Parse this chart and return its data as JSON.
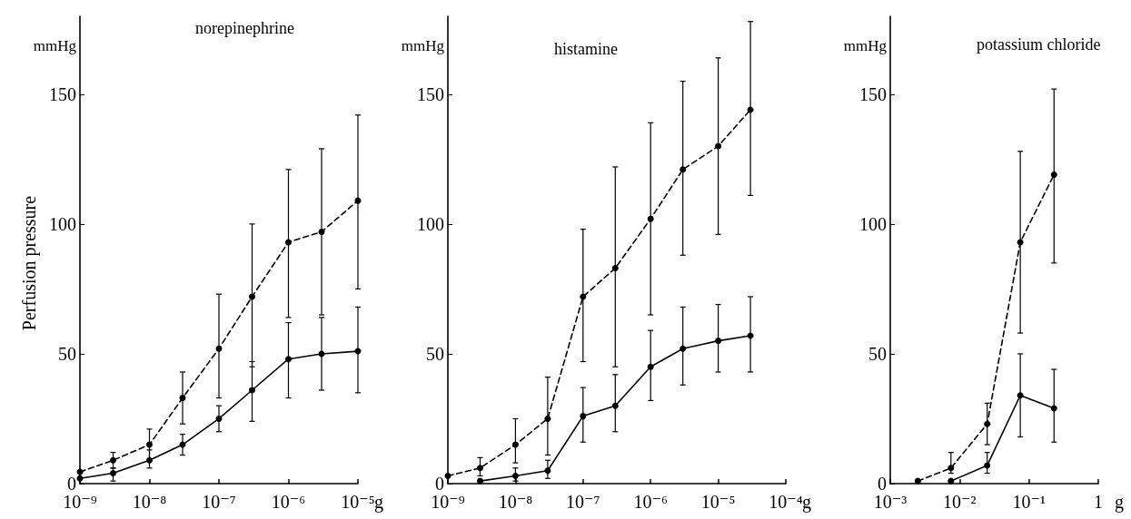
{
  "chart_data": [
    {
      "type": "line",
      "title": "norepinephrine",
      "ylabel": "mmHg",
      "xlabel": "g",
      "annotations": [
        "Perfusion pressure"
      ],
      "log": "x",
      "xlim": [
        1e-09,
        1e-05
      ],
      "xticks": [
        {
          "value": 1e-09,
          "label": "10⁻⁹"
        },
        {
          "value": 1e-08,
          "label": "10⁻⁸"
        },
        {
          "value": 1e-07,
          "label": "10⁻⁷"
        },
        {
          "value": 1e-06,
          "label": "10⁻⁶"
        },
        {
          "value": 1e-05,
          "label": "10⁻⁵"
        }
      ],
      "ylim": [
        0,
        180
      ],
      "yticks": [
        0,
        50,
        100,
        150
      ],
      "grid": false,
      "marker": "circle",
      "series": [
        {
          "color": "#000000",
          "line_style": "dashed",
          "x": [
            1e-09,
            3e-09,
            1e-08,
            3e-08,
            1e-07,
            3e-07,
            1e-06,
            3e-06,
            1e-05
          ],
          "values": [
            4.5,
            9,
            15,
            33,
            52,
            72,
            93,
            97,
            109
          ],
          "errors": [
            null,
            [
              6,
              12
            ],
            [
              9,
              21
            ],
            [
              23,
              43
            ],
            [
              33,
              73
            ],
            [
              45,
              100
            ],
            [
              64,
              121
            ],
            [
              65,
              129
            ],
            [
              75,
              142
            ]
          ]
        },
        {
          "color": "#000000",
          "line_style": "solid",
          "x": [
            1e-09,
            3e-09,
            1e-08,
            3e-08,
            1e-07,
            3e-07,
            1e-06,
            3e-06,
            1e-05
          ],
          "values": [
            2,
            4,
            9,
            15,
            25,
            36,
            48,
            50,
            51
          ],
          "errors": [
            null,
            [
              1,
              6
            ],
            [
              6,
              13
            ],
            [
              11,
              19
            ],
            [
              20,
              30
            ],
            [
              24,
              47
            ],
            [
              33,
              62
            ],
            [
              36,
              64
            ],
            [
              35,
              68
            ]
          ]
        }
      ]
    },
    {
      "type": "line",
      "title": "histamine",
      "ylabel": "mmHg",
      "xlabel": "g",
      "log": "x",
      "xlim": [
        1e-09,
        0.0001
      ],
      "xticks": [
        {
          "value": 1e-09,
          "label": "10⁻⁹"
        },
        {
          "value": 1e-08,
          "label": "10⁻⁸"
        },
        {
          "value": 1e-07,
          "label": "10⁻⁷"
        },
        {
          "value": 1e-06,
          "label": "10⁻⁶"
        },
        {
          "value": 1e-05,
          "label": "10⁻⁵"
        },
        {
          "value": 0.0001,
          "label": "10⁻⁴"
        }
      ],
      "ylim": [
        0,
        180
      ],
      "yticks": [
        0,
        50,
        100,
        150
      ],
      "grid": false,
      "marker": "circle",
      "series": [
        {
          "color": "#000000",
          "line_style": "dashed",
          "x": [
            1e-09,
            3e-09,
            1e-08,
            3e-08,
            1e-07,
            3e-07,
            1e-06,
            3e-06,
            1e-05,
            3e-05
          ],
          "values": [
            3,
            6,
            15,
            25,
            72,
            83,
            102,
            121,
            130,
            144
          ],
          "errors": [
            null,
            [
              3,
              10
            ],
            [
              8,
              25
            ],
            [
              11,
              41
            ],
            [
              47,
              98
            ],
            [
              45,
              122
            ],
            [
              65,
              139
            ],
            [
              88,
              155
            ],
            [
              96,
              164
            ],
            [
              111,
              178
            ]
          ]
        },
        {
          "color": "#000000",
          "line_style": "solid",
          "x": [
            3e-09,
            1e-08,
            3e-08,
            1e-07,
            3e-07,
            1e-06,
            3e-06,
            1e-05,
            3e-05
          ],
          "values": [
            1,
            3,
            5,
            26,
            30,
            45,
            52,
            55,
            57
          ],
          "errors": [
            null,
            [
              1,
              6
            ],
            [
              2,
              9
            ],
            [
              16,
              37
            ],
            [
              20,
              42
            ],
            [
              32,
              59
            ],
            [
              38,
              68
            ],
            [
              43,
              69
            ],
            [
              43,
              72
            ]
          ]
        }
      ]
    },
    {
      "type": "line",
      "title": "potassium chloride",
      "ylabel": "mmHg",
      "xlabel": "g",
      "log": "x",
      "xlim": [
        0.001,
        1
      ],
      "xticks": [
        {
          "value": 0.001,
          "label": "10⁻³"
        },
        {
          "value": 0.01,
          "label": "10⁻²"
        },
        {
          "value": 0.1,
          "label": "10⁻¹"
        },
        1
      ],
      "ylim": [
        0,
        180
      ],
      "yticks": [
        0,
        50,
        100,
        150
      ],
      "grid": false,
      "marker": "circle",
      "series": [
        {
          "color": "#000000",
          "line_style": "dashed",
          "x": [
            0.0025,
            0.0075,
            0.025,
            0.075,
            0.23
          ],
          "values": [
            1,
            6,
            23,
            93,
            119
          ],
          "errors": [
            null,
            [
              4,
              12
            ],
            [
              15,
              31
            ],
            [
              58,
              128
            ],
            [
              85,
              152
            ]
          ]
        },
        {
          "color": "#000000",
          "line_style": "solid",
          "x": [
            0.0075,
            0.025,
            0.075,
            0.23
          ],
          "values": [
            1,
            7,
            34,
            29
          ],
          "errors": [
            null,
            [
              4,
              12
            ],
            [
              18,
              50
            ],
            [
              16,
              44
            ]
          ]
        }
      ]
    }
  ]
}
